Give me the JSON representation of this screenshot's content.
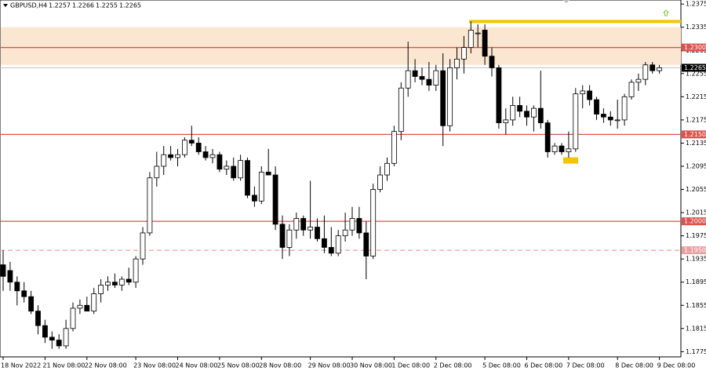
{
  "chart_data": {
    "type": "candlestick",
    "title": "GBPUSD,H4",
    "header_values": [
      1.2257,
      1.2266,
      1.2255,
      1.2265
    ],
    "categories": [
      "18 Nov 2022",
      null,
      null,
      null,
      null,
      null,
      "21 Nov 08:00",
      null,
      null,
      null,
      null,
      null,
      "22 Nov 08:00",
      null,
      null,
      null,
      null,
      null,
      null,
      "23 Nov 08:00",
      null,
      null,
      null,
      null,
      null,
      "24 Nov 08:00",
      null,
      null,
      null,
      null,
      null,
      "25 Nov 08:00",
      null,
      null,
      null,
      null,
      null,
      "28 Nov 08:00",
      null,
      null,
      null,
      null,
      null,
      null,
      "29 Nov 08:00",
      null,
      null,
      null,
      null,
      null,
      "30 Nov 08:00",
      null,
      null,
      null,
      null,
      null,
      "1 Dec 08:00",
      null,
      null,
      null,
      null,
      null,
      "2 Dec 08:00",
      null,
      null,
      null,
      null,
      null,
      null,
      "5 Dec 08:00",
      null,
      null,
      null,
      null,
      null,
      "6 Dec 08:00",
      null,
      null,
      null,
      null,
      null,
      "7 Dec 08:00",
      null,
      null,
      null,
      null,
      null,
      null,
      "8 Dec 08:00",
      null,
      null,
      null,
      null,
      null,
      "9 Dec 08:00"
    ],
    "open": [
      1.1925,
      1.1915,
      1.1895,
      1.188,
      1.187,
      1.1845,
      1.182,
      1.18,
      1.1795,
      1.1785,
      1.1815,
      1.185,
      1.1855,
      1.1845,
      1.1875,
      1.189,
      1.1895,
      1.189,
      1.19,
      1.1895,
      1.1935,
      1.198,
      1.2075,
      1.2095,
      1.2115,
      1.211,
      1.2115,
      1.214,
      1.2135,
      1.212,
      1.211,
      1.2115,
      1.209,
      1.2095,
      1.2075,
      1.2105,
      1.2045,
      1.2035,
      1.2085,
      1.208,
      1.1995,
      1.1955,
      1.1985,
      1.2005,
      1.1985,
      1.199,
      1.197,
      1.1955,
      1.1945,
      1.1975,
      1.1985,
      1.2005,
      1.198,
      1.194,
      1.2055,
      1.208,
      1.21,
      1.2155,
      1.223,
      1.226,
      1.225,
      1.2245,
      1.2235,
      1.226,
      1.2165,
      1.2265,
      1.228,
      1.23,
      1.2325,
      1.233,
      1.2285,
      1.2265,
      1.217,
      1.2175,
      1.22,
      1.219,
      1.218,
      1.2195,
      1.217,
      1.212,
      1.213,
      1.212,
      1.2125,
      1.222,
      1.2225,
      1.221,
      1.2185,
      1.218,
      1.2175,
      1.2175,
      1.2215,
      1.224,
      1.2245,
      1.227,
      1.226
    ],
    "high": [
      1.195,
      1.193,
      1.1905,
      1.1895,
      1.188,
      1.1855,
      1.183,
      1.181,
      1.1805,
      1.183,
      1.186,
      1.1865,
      1.187,
      1.1885,
      1.19,
      1.1905,
      1.191,
      1.1905,
      1.192,
      1.194,
      1.199,
      1.2085,
      1.212,
      1.213,
      1.213,
      1.2125,
      1.2145,
      1.2165,
      1.2145,
      1.213,
      1.2125,
      1.212,
      1.2105,
      1.211,
      1.2115,
      1.211,
      1.206,
      1.2095,
      1.2125,
      1.2095,
      1.201,
      1.1995,
      1.2015,
      1.201,
      1.207,
      1.2005,
      1.201,
      1.199,
      1.1985,
      1.2015,
      1.2025,
      1.2025,
      1.2,
      1.2065,
      1.2095,
      1.211,
      1.2165,
      1.224,
      1.231,
      1.228,
      1.2265,
      1.2275,
      1.227,
      1.229,
      1.228,
      1.23,
      1.232,
      1.2345,
      1.234,
      1.234,
      1.23,
      1.227,
      1.2195,
      1.2215,
      1.2215,
      1.22,
      1.22,
      1.226,
      1.2175,
      1.2135,
      1.2135,
      1.2155,
      1.223,
      1.2235,
      1.2235,
      1.2215,
      1.2195,
      1.219,
      1.221,
      1.222,
      1.2245,
      1.2255,
      1.2275,
      1.2275,
      1.227
    ],
    "low": [
      1.188,
      1.188,
      1.1855,
      1.186,
      1.184,
      1.1805,
      1.179,
      1.178,
      1.178,
      1.178,
      1.181,
      1.184,
      1.1845,
      1.184,
      1.186,
      1.188,
      1.1885,
      1.188,
      1.189,
      1.1885,
      1.1925,
      1.1975,
      1.206,
      1.208,
      1.2105,
      1.2095,
      1.211,
      1.213,
      1.2115,
      1.2105,
      1.21,
      1.2085,
      1.208,
      1.207,
      1.207,
      1.204,
      1.2025,
      1.203,
      1.208,
      1.1985,
      1.1935,
      1.194,
      1.197,
      1.1975,
      1.197,
      1.1965,
      1.1945,
      1.194,
      1.194,
      1.1965,
      1.1975,
      1.197,
      1.19,
      1.1935,
      1.205,
      1.207,
      1.2095,
      1.214,
      1.2215,
      1.224,
      1.2235,
      1.2225,
      1.2225,
      1.213,
      1.2155,
      1.2245,
      1.2255,
      1.229,
      1.23,
      1.227,
      1.225,
      1.216,
      1.215,
      1.2165,
      1.218,
      1.2165,
      1.2155,
      1.216,
      1.211,
      1.2115,
      1.2115,
      1.211,
      1.212,
      1.2195,
      1.22,
      1.2175,
      1.217,
      1.2165,
      1.216,
      1.2165,
      1.221,
      1.2225,
      1.2235,
      1.2255,
      1.2255
    ],
    "close": [
      1.1905,
      1.1895,
      1.188,
      1.187,
      1.1845,
      1.182,
      1.18,
      1.1795,
      1.1785,
      1.1815,
      1.185,
      1.1855,
      1.1845,
      1.1875,
      1.189,
      1.1895,
      1.189,
      1.19,
      1.1895,
      1.1935,
      1.198,
      1.2075,
      1.2095,
      1.2115,
      1.211,
      1.2115,
      1.214,
      1.2135,
      1.212,
      1.211,
      1.2115,
      1.209,
      1.2095,
      1.2075,
      1.2105,
      1.2045,
      1.2035,
      1.2085,
      1.208,
      1.1995,
      1.1955,
      1.1985,
      1.2005,
      1.1985,
      1.199,
      1.197,
      1.1955,
      1.1945,
      1.1975,
      1.1985,
      1.2005,
      1.198,
      1.194,
      1.2055,
      1.208,
      1.21,
      1.2155,
      1.223,
      1.226,
      1.225,
      1.2245,
      1.2235,
      1.226,
      1.2165,
      1.2265,
      1.228,
      1.23,
      1.233,
      1.2325,
      1.2285,
      1.2265,
      1.217,
      1.2175,
      1.22,
      1.219,
      1.218,
      1.2195,
      1.217,
      1.212,
      1.213,
      1.212,
      1.2125,
      1.222,
      1.2225,
      1.221,
      1.2185,
      1.218,
      1.2175,
      1.2175,
      1.2215,
      1.224,
      1.2245,
      1.227,
      1.226,
      1.2265
    ],
    "up_color": "#ffffff",
    "down_color": "#000000",
    "ylim": [
      1.1766,
      1.2382
    ],
    "yticks": [
      1.2375,
      1.2335,
      1.2295,
      1.2255,
      1.2215,
      1.2175,
      1.2135,
      1.2095,
      1.2055,
      1.2015,
      1.1975,
      1.1935,
      1.1895,
      1.1855,
      1.1815,
      1.1775
    ],
    "levels": [
      {
        "value": 1.23,
        "label": "1.2300",
        "color": "#d9534f",
        "dashed": false
      },
      {
        "value": 1.215,
        "label": "1.2150",
        "color": "#d9534f",
        "dashed": false
      },
      {
        "value": 1.2,
        "label": "1.2000",
        "color": "#d9534f",
        "dashed": false
      },
      {
        "value": 1.195,
        "label": "1.1950",
        "color": "#e8a0a0",
        "dashed": true
      }
    ],
    "zone": {
      "from": 1.227,
      "to": 1.2335,
      "color": "#fbe6d2"
    },
    "resistance_line": {
      "value": 1.2345,
      "color": "#f5c400"
    },
    "support_marker": {
      "value": 1.2105,
      "color": "#f5c400"
    },
    "last_price": {
      "value": 1.2265,
      "label": "1.2265"
    }
  }
}
